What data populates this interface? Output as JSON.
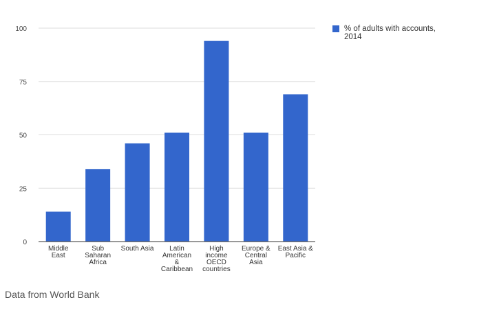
{
  "chart_data": {
    "type": "bar",
    "categories": [
      [
        "Middle",
        "East"
      ],
      [
        "Sub",
        "Saharan",
        "Africa"
      ],
      [
        "South Asia"
      ],
      [
        "Latin",
        "American",
        "&",
        "Caribbean"
      ],
      [
        "High",
        "income",
        "OECD",
        "countries"
      ],
      [
        "Europe &",
        "Central",
        "Asia"
      ],
      [
        "East Asia &",
        "Pacific"
      ]
    ],
    "series": [
      {
        "name": "% of adults with accounts, 2014",
        "name_lines": [
          "% of adults with accounts,",
          "2014"
        ],
        "values": [
          14,
          34,
          46,
          51,
          94,
          51,
          69
        ],
        "color": "#3366cc"
      }
    ],
    "yticks": [
      0,
      25,
      50,
      75,
      100
    ],
    "ylim": [
      0,
      100
    ],
    "grid": true,
    "legend_position": "right",
    "gridline_color": "#dddddd",
    "axis_color": "#333333"
  },
  "source_note": "Data from World Bank"
}
